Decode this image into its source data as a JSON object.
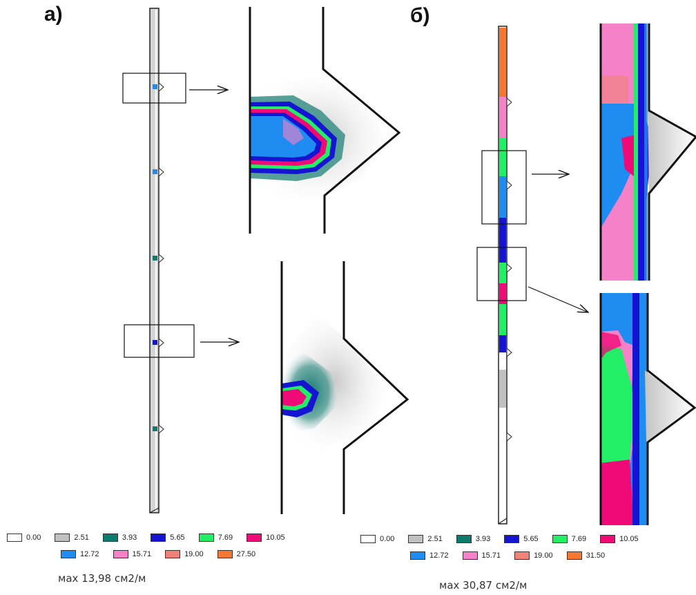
{
  "panels": [
    {
      "label": "а)",
      "max_note": "мах 13,98 см2/м"
    },
    {
      "label": "б)",
      "max_note": "мах 30,87 см2/м"
    }
  ],
  "legend_a": [
    {
      "value": "0.00",
      "color": "#ffffff"
    },
    {
      "value": "2.51",
      "color": "#c0c0c0"
    },
    {
      "value": "3.93",
      "color": "#0d7a6e"
    },
    {
      "value": "5.65",
      "color": "#1414d2"
    },
    {
      "value": "7.69",
      "color": "#22ee66"
    },
    {
      "value": "10.05",
      "color": "#f00a78"
    },
    {
      "value": "12.72",
      "color": "#1e8cf0"
    },
    {
      "value": "15.71",
      "color": "#f582c8"
    },
    {
      "value": "19.00",
      "color": "#f08278"
    },
    {
      "value": "27.50",
      "color": "#f57832"
    }
  ],
  "legend_b": [
    {
      "value": "0.00",
      "color": "#ffffff"
    },
    {
      "value": "2.51",
      "color": "#c0c0c0"
    },
    {
      "value": "3.93",
      "color": "#0d7a6e"
    },
    {
      "value": "5.65",
      "color": "#1414d2"
    },
    {
      "value": "7.69",
      "color": "#22ee66"
    },
    {
      "value": "10.05",
      "color": "#f00a78"
    },
    {
      "value": "12.72",
      "color": "#1e8cf0"
    },
    {
      "value": "15.71",
      "color": "#f582c8"
    },
    {
      "value": "19.00",
      "color": "#f08278"
    },
    {
      "value": "31.50",
      "color": "#f57832"
    }
  ]
}
